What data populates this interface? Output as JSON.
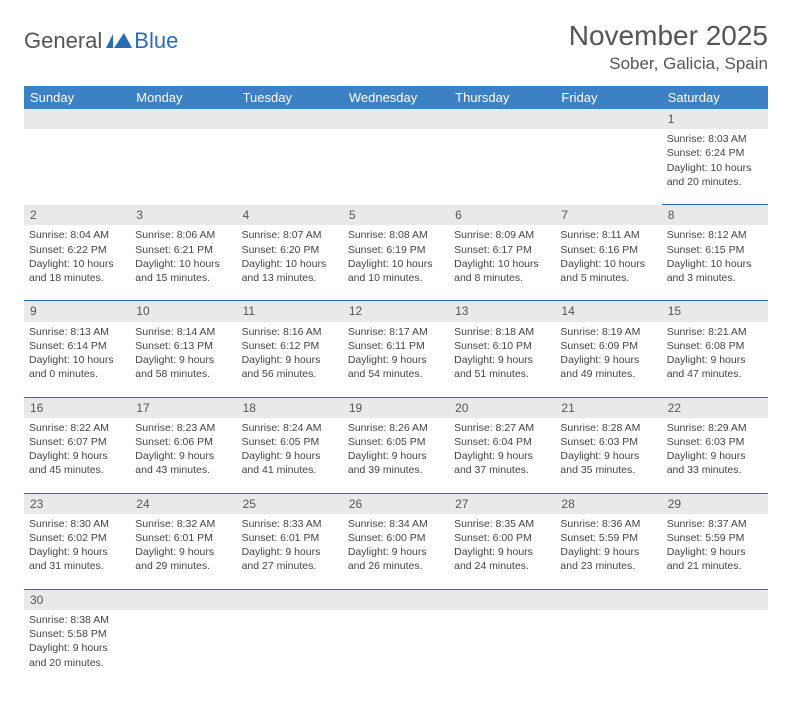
{
  "logo": {
    "text1": "General",
    "text2": "Blue"
  },
  "title": "November 2025",
  "location": "Sober, Galicia, Spain",
  "colors": {
    "header_bg": "#3c81c4",
    "header_fg": "#ffffff",
    "daynum_bg": "#e9e9e9",
    "rule": "#2a6db5",
    "logo_blue": "#2a6db5",
    "text": "#444444"
  },
  "day_headers": [
    "Sunday",
    "Monday",
    "Tuesday",
    "Wednesday",
    "Thursday",
    "Friday",
    "Saturday"
  ],
  "weeks": [
    [
      null,
      null,
      null,
      null,
      null,
      null,
      {
        "n": "1",
        "sr": "8:03 AM",
        "ss": "6:24 PM",
        "dl": "10 hours and 20 minutes."
      }
    ],
    [
      {
        "n": "2",
        "sr": "8:04 AM",
        "ss": "6:22 PM",
        "dl": "10 hours and 18 minutes."
      },
      {
        "n": "3",
        "sr": "8:06 AM",
        "ss": "6:21 PM",
        "dl": "10 hours and 15 minutes."
      },
      {
        "n": "4",
        "sr": "8:07 AM",
        "ss": "6:20 PM",
        "dl": "10 hours and 13 minutes."
      },
      {
        "n": "5",
        "sr": "8:08 AM",
        "ss": "6:19 PM",
        "dl": "10 hours and 10 minutes."
      },
      {
        "n": "6",
        "sr": "8:09 AM",
        "ss": "6:17 PM",
        "dl": "10 hours and 8 minutes."
      },
      {
        "n": "7",
        "sr": "8:11 AM",
        "ss": "6:16 PM",
        "dl": "10 hours and 5 minutes."
      },
      {
        "n": "8",
        "sr": "8:12 AM",
        "ss": "6:15 PM",
        "dl": "10 hours and 3 minutes."
      }
    ],
    [
      {
        "n": "9",
        "sr": "8:13 AM",
        "ss": "6:14 PM",
        "dl": "10 hours and 0 minutes."
      },
      {
        "n": "10",
        "sr": "8:14 AM",
        "ss": "6:13 PM",
        "dl": "9 hours and 58 minutes."
      },
      {
        "n": "11",
        "sr": "8:16 AM",
        "ss": "6:12 PM",
        "dl": "9 hours and 56 minutes."
      },
      {
        "n": "12",
        "sr": "8:17 AM",
        "ss": "6:11 PM",
        "dl": "9 hours and 54 minutes."
      },
      {
        "n": "13",
        "sr": "8:18 AM",
        "ss": "6:10 PM",
        "dl": "9 hours and 51 minutes."
      },
      {
        "n": "14",
        "sr": "8:19 AM",
        "ss": "6:09 PM",
        "dl": "9 hours and 49 minutes."
      },
      {
        "n": "15",
        "sr": "8:21 AM",
        "ss": "6:08 PM",
        "dl": "9 hours and 47 minutes."
      }
    ],
    [
      {
        "n": "16",
        "sr": "8:22 AM",
        "ss": "6:07 PM",
        "dl": "9 hours and 45 minutes."
      },
      {
        "n": "17",
        "sr": "8:23 AM",
        "ss": "6:06 PM",
        "dl": "9 hours and 43 minutes."
      },
      {
        "n": "18",
        "sr": "8:24 AM",
        "ss": "6:05 PM",
        "dl": "9 hours and 41 minutes."
      },
      {
        "n": "19",
        "sr": "8:26 AM",
        "ss": "6:05 PM",
        "dl": "9 hours and 39 minutes."
      },
      {
        "n": "20",
        "sr": "8:27 AM",
        "ss": "6:04 PM",
        "dl": "9 hours and 37 minutes."
      },
      {
        "n": "21",
        "sr": "8:28 AM",
        "ss": "6:03 PM",
        "dl": "9 hours and 35 minutes."
      },
      {
        "n": "22",
        "sr": "8:29 AM",
        "ss": "6:03 PM",
        "dl": "9 hours and 33 minutes."
      }
    ],
    [
      {
        "n": "23",
        "sr": "8:30 AM",
        "ss": "6:02 PM",
        "dl": "9 hours and 31 minutes."
      },
      {
        "n": "24",
        "sr": "8:32 AM",
        "ss": "6:01 PM",
        "dl": "9 hours and 29 minutes."
      },
      {
        "n": "25",
        "sr": "8:33 AM",
        "ss": "6:01 PM",
        "dl": "9 hours and 27 minutes."
      },
      {
        "n": "26",
        "sr": "8:34 AM",
        "ss": "6:00 PM",
        "dl": "9 hours and 26 minutes."
      },
      {
        "n": "27",
        "sr": "8:35 AM",
        "ss": "6:00 PM",
        "dl": "9 hours and 24 minutes."
      },
      {
        "n": "28",
        "sr": "8:36 AM",
        "ss": "5:59 PM",
        "dl": "9 hours and 23 minutes."
      },
      {
        "n": "29",
        "sr": "8:37 AM",
        "ss": "5:59 PM",
        "dl": "9 hours and 21 minutes."
      }
    ],
    [
      {
        "n": "30",
        "sr": "8:38 AM",
        "ss": "5:58 PM",
        "dl": "9 hours and 20 minutes."
      },
      null,
      null,
      null,
      null,
      null,
      null
    ]
  ],
  "labels": {
    "sunrise": "Sunrise: ",
    "sunset": "Sunset: ",
    "daylight": "Daylight: "
  }
}
